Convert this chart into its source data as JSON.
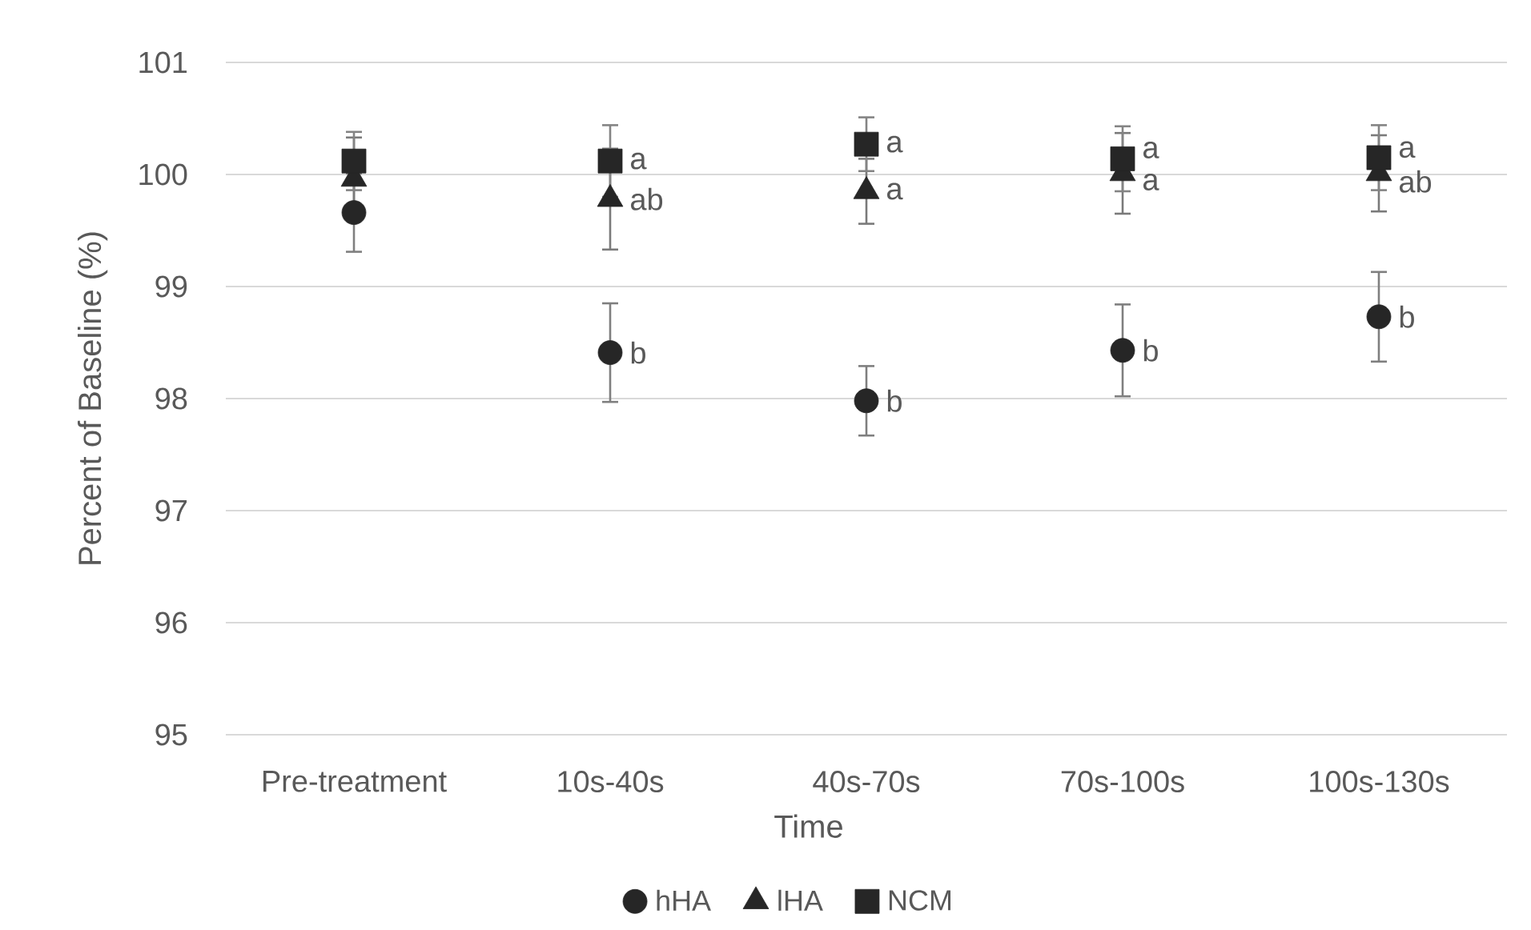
{
  "chart_data": {
    "type": "scatter",
    "xlabel": "Time",
    "ylabel": "Percent of Baseline (%)",
    "categories": [
      "Pre-treatment",
      "10s-40s",
      "40s-70s",
      "70s-100s",
      "100s-130s"
    ],
    "series": [
      {
        "name": "hHA",
        "color": "#262626",
        "marker": "circle",
        "values": [
          99.66,
          98.41,
          97.98,
          98.43,
          98.73
        ],
        "errors": [
          0.35,
          0.44,
          0.31,
          0.41,
          0.4
        ]
      },
      {
        "name": "lHA",
        "color": "#262626",
        "marker": "triangle",
        "values": [
          99.96,
          99.78,
          99.85,
          100.01,
          100.01
        ],
        "errors": [
          0.37,
          0.45,
          0.29,
          0.36,
          0.34
        ]
      },
      {
        "name": "NCM",
        "color": "#262626",
        "marker": "square",
        "values": [
          100.12,
          100.12,
          100.27,
          100.14,
          100.15
        ],
        "errors": [
          0.26,
          0.32,
          0.24,
          0.29,
          0.29
        ]
      }
    ],
    "ylim": [
      95,
      101
    ],
    "yticks": [
      95,
      96,
      97,
      98,
      99,
      100,
      101
    ],
    "grid": "y",
    "legend": "bottom",
    "annotations": [
      {
        "text": "a",
        "x": "10s-40s",
        "y": 100.12
      },
      {
        "text": "ab",
        "x": "10s-40s",
        "y": 99.78
      },
      {
        "text": "b",
        "x": "10s-40s",
        "y": 98.41
      },
      {
        "text": "a",
        "x": "40s-70s",
        "y": 100.27
      },
      {
        "text": "a",
        "x": "40s-70s",
        "y": 99.85
      },
      {
        "text": "b",
        "x": "40s-70s",
        "y": 97.98
      },
      {
        "text": "a",
        "x": "70s-100s",
        "y": 100.14
      },
      {
        "text": "a",
        "x": "70s-100s",
        "y": 100.01
      },
      {
        "text": "b",
        "x": "70s-100s",
        "y": 98.43
      },
      {
        "text": "a",
        "x": "100s-130s",
        "y": 100.15
      },
      {
        "text": "ab",
        "x": "100s-130s",
        "y": 100.01
      },
      {
        "text": "b",
        "x": "100s-130s",
        "y": 98.73
      }
    ]
  }
}
